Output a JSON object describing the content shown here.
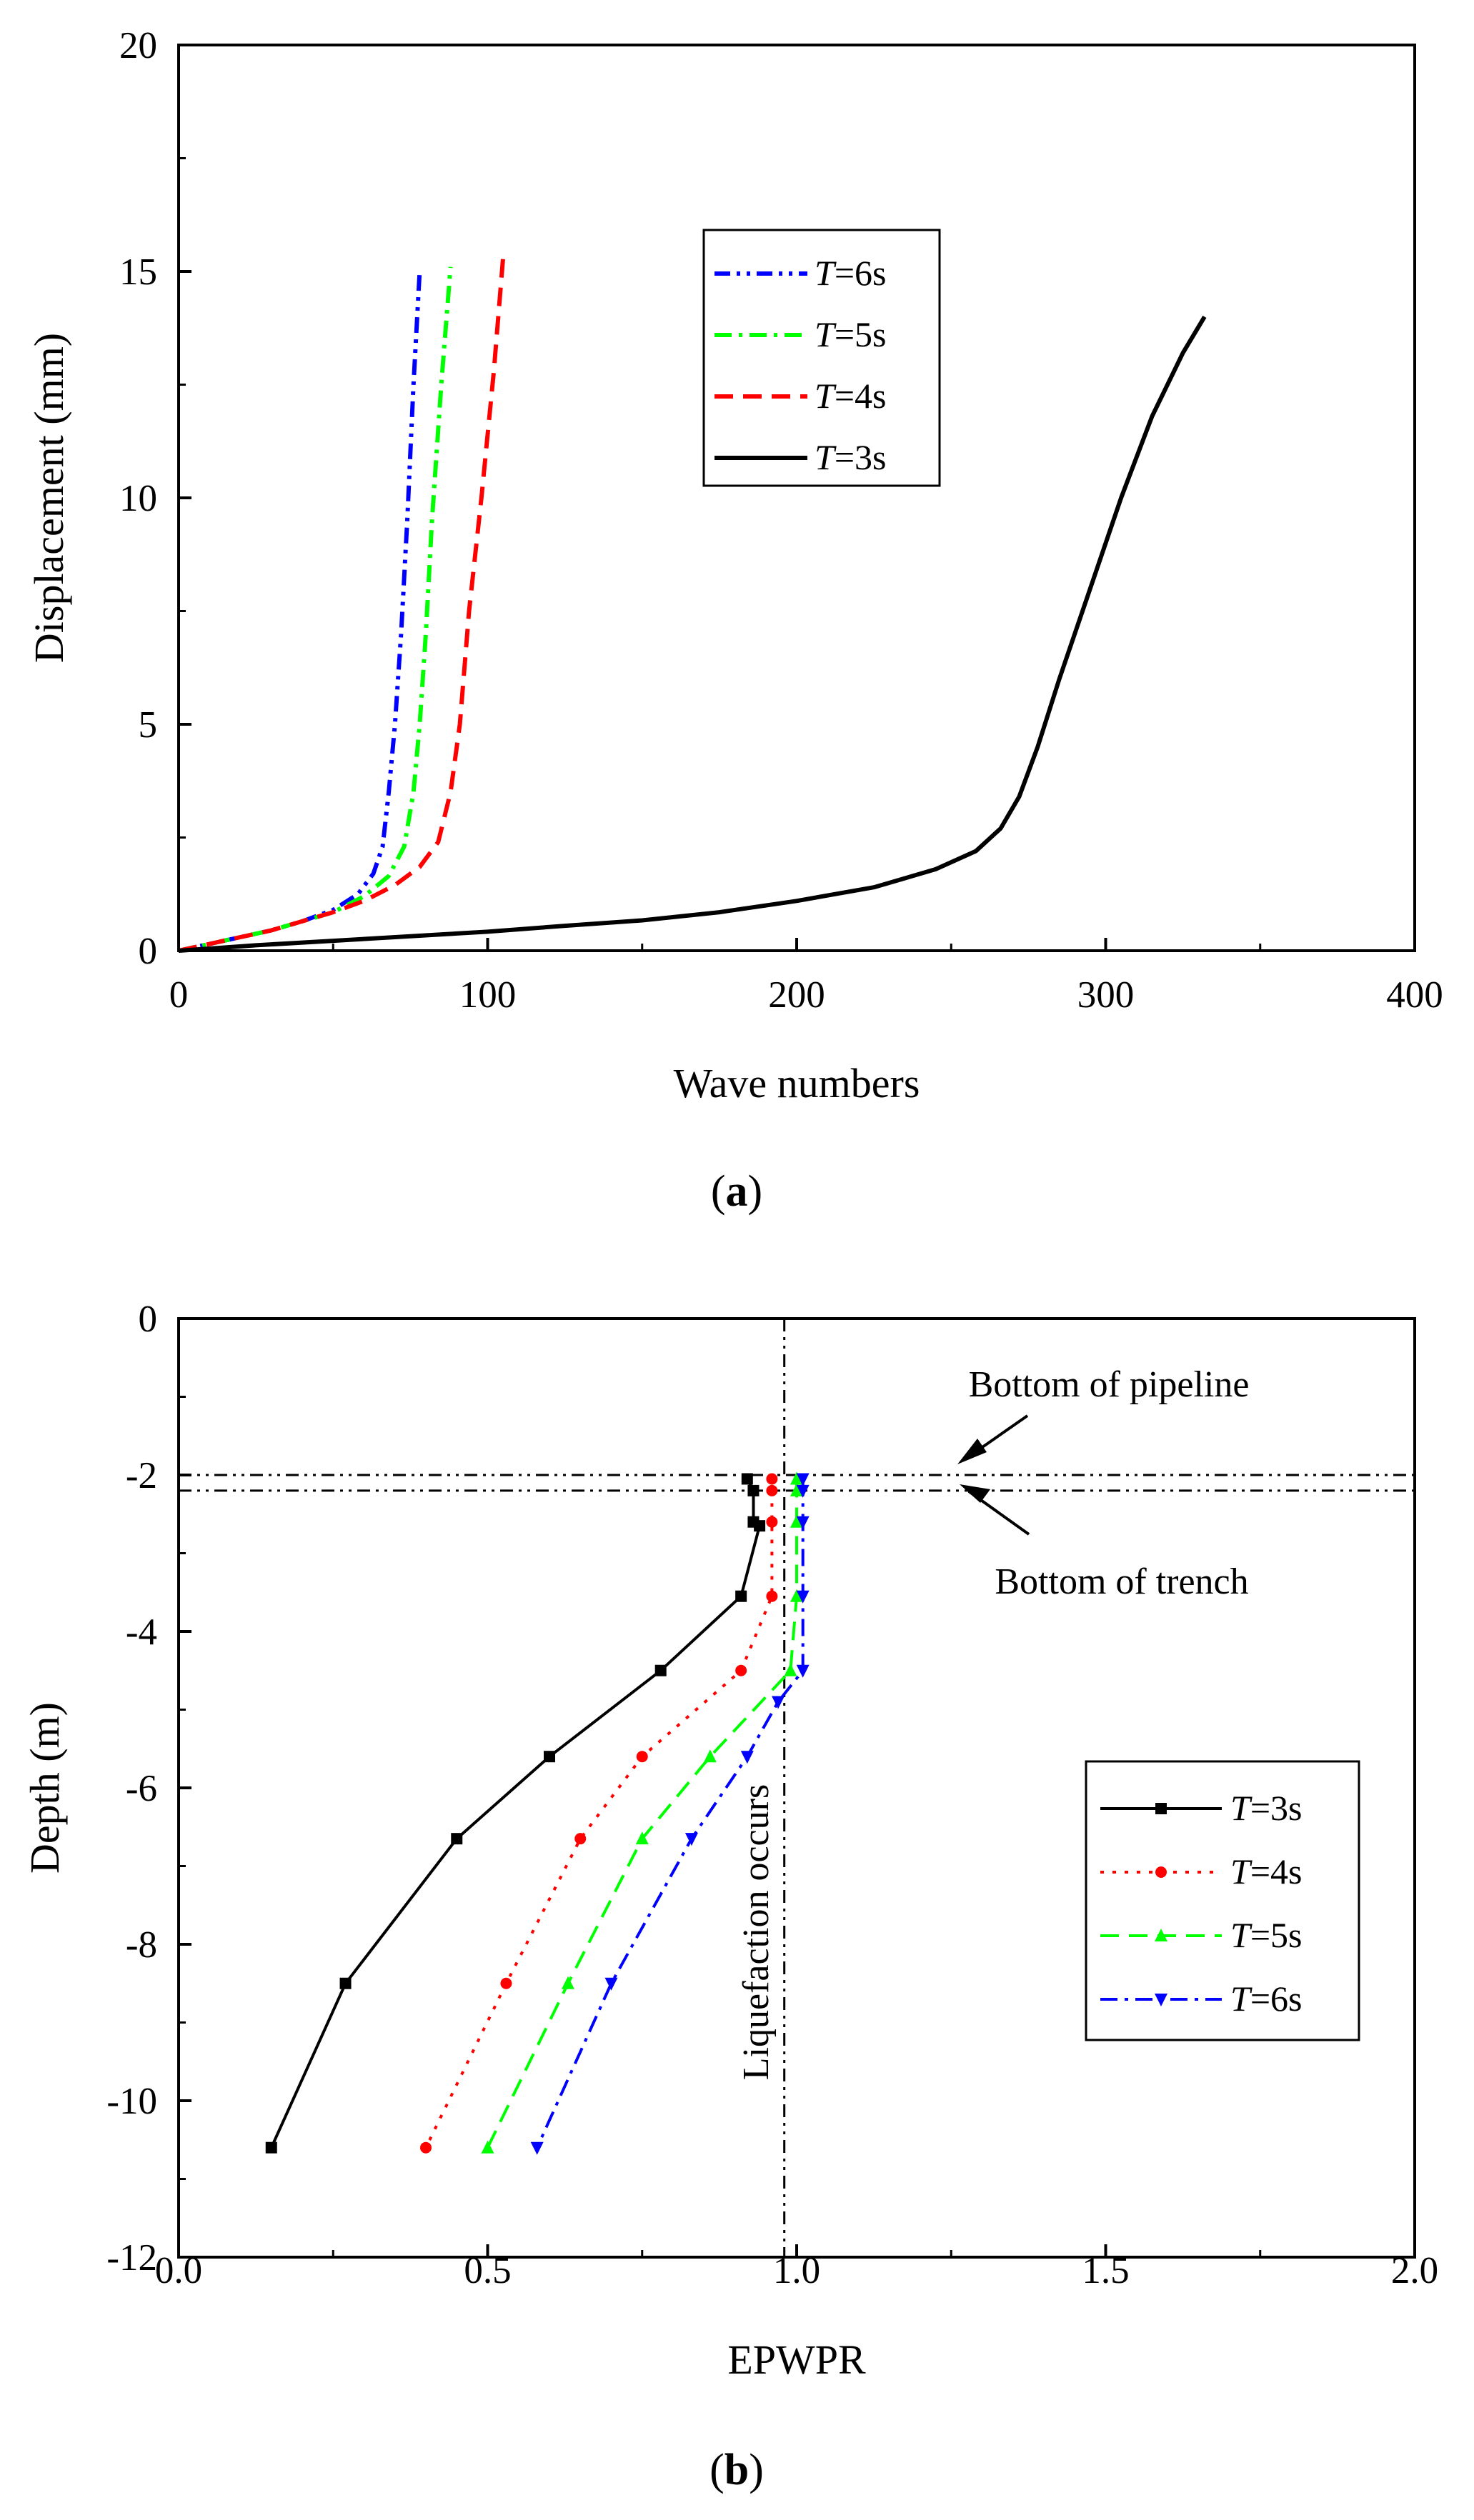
{
  "chart_data": [
    {
      "id": "a",
      "type": "line",
      "caption_letter": "a",
      "xlabel": "Wave numbers",
      "ylabel": "Displacement (mm)",
      "xlim": [
        0,
        400
      ],
      "ylim": [
        0,
        20
      ],
      "xticks": [
        0,
        100,
        200,
        300,
        400
      ],
      "yticks": [
        0,
        5,
        10,
        15,
        20
      ],
      "grid": false,
      "legend_position": "center-top",
      "series": [
        {
          "name": "T=6s",
          "name_italic": "T",
          "name_rest": "=6s",
          "color": "#0000ff",
          "dash": "dashdotdot",
          "points": [
            [
              0,
              0
            ],
            [
              10,
              0.15
            ],
            [
              20,
              0.3
            ],
            [
              30,
              0.45
            ],
            [
              40,
              0.65
            ],
            [
              50,
              0.9
            ],
            [
              58,
              1.25
            ],
            [
              63,
              1.7
            ],
            [
              66,
              2.3
            ],
            [
              68,
              3.5
            ],
            [
              70,
              5
            ],
            [
              72,
              7
            ],
            [
              74,
              9.5
            ],
            [
              76,
              12.5
            ],
            [
              78,
              15
            ]
          ]
        },
        {
          "name": "T=5s",
          "name_italic": "T",
          "name_rest": "=5s",
          "color": "#00ff00",
          "dash": "dashdot",
          "points": [
            [
              0,
              0
            ],
            [
              10,
              0.15
            ],
            [
              20,
              0.3
            ],
            [
              30,
              0.45
            ],
            [
              40,
              0.65
            ],
            [
              50,
              0.85
            ],
            [
              60,
              1.2
            ],
            [
              68,
              1.65
            ],
            [
              73,
              2.3
            ],
            [
              76,
              3.5
            ],
            [
              78,
              5
            ],
            [
              80,
              7
            ],
            [
              82,
              9.5
            ],
            [
              85,
              12.5
            ],
            [
              88,
              15.1
            ]
          ]
        },
        {
          "name": "T=4s",
          "name_italic": "T",
          "name_rest": "=4s",
          "color": "#ff0000",
          "dash": "dash",
          "points": [
            [
              0,
              0
            ],
            [
              10,
              0.15
            ],
            [
              20,
              0.3
            ],
            [
              30,
              0.45
            ],
            [
              40,
              0.65
            ],
            [
              50,
              0.85
            ],
            [
              60,
              1.1
            ],
            [
              70,
              1.45
            ],
            [
              78,
              1.85
            ],
            [
              84,
              2.4
            ],
            [
              88,
              3.5
            ],
            [
              91,
              5
            ],
            [
              94,
              7.5
            ],
            [
              98,
              10
            ],
            [
              102,
              12.8
            ],
            [
              105,
              15.3
            ]
          ]
        },
        {
          "name": "T=3s",
          "name_italic": "T",
          "name_rest": "=3s",
          "color": "#000000",
          "dash": "solid",
          "points": [
            [
              0,
              0
            ],
            [
              25,
              0.12
            ],
            [
              50,
              0.22
            ],
            [
              75,
              0.32
            ],
            [
              100,
              0.42
            ],
            [
              125,
              0.55
            ],
            [
              150,
              0.67
            ],
            [
              175,
              0.85
            ],
            [
              200,
              1.1
            ],
            [
              225,
              1.4
            ],
            [
              245,
              1.8
            ],
            [
              258,
              2.2
            ],
            [
              266,
              2.7
            ],
            [
              272,
              3.4
            ],
            [
              278,
              4.5
            ],
            [
              285,
              6
            ],
            [
              295,
              8
            ],
            [
              305,
              10
            ],
            [
              315,
              11.8
            ],
            [
              325,
              13.2
            ],
            [
              332,
              14
            ]
          ]
        }
      ]
    },
    {
      "id": "b",
      "type": "line",
      "caption_letter": "b",
      "xlabel": "EPWPR",
      "ylabel": "Depth (m)",
      "xlim": [
        0.0,
        2.0
      ],
      "ylim": [
        -12,
        0
      ],
      "xticks": [
        "0.0",
        "0.5",
        "1.0",
        "1.5",
        "2.0"
      ],
      "yticks": [
        0,
        -2,
        -4,
        -6,
        -8,
        -10,
        -12
      ],
      "grid": false,
      "legend_position": "bottom-right",
      "reference_lines": {
        "pipeline_bottom_depth": -2.0,
        "trench_bottom_depth": -2.2,
        "liquefaction_epwpr": 0.98
      },
      "annotations": {
        "pipeline": "Bottom of pipeline",
        "trench": "Bottom of trench",
        "liquefaction": "Liquefaction occurs"
      },
      "series": [
        {
          "name": "T=3s",
          "name_italic": "T",
          "name_rest": "=3s",
          "color": "#000000",
          "dash": "solid",
          "marker": "square",
          "points": [
            [
              0.92,
              -2.05
            ],
            [
              0.93,
              -2.2
            ],
            [
              0.93,
              -2.6
            ],
            [
              0.94,
              -2.65
            ],
            [
              0.91,
              -3.55
            ],
            [
              0.78,
              -4.5
            ],
            [
              0.6,
              -5.6
            ],
            [
              0.45,
              -6.65
            ],
            [
              0.27,
              -8.5
            ],
            [
              0.15,
              -10.6
            ]
          ]
        },
        {
          "name": "T=4s",
          "name_italic": "T",
          "name_rest": "=4s",
          "color": "#ff0000",
          "dash": "dot",
          "marker": "circle",
          "points": [
            [
              0.96,
              -2.05
            ],
            [
              0.96,
              -2.2
            ],
            [
              0.96,
              -2.6
            ],
            [
              0.96,
              -3.55
            ],
            [
              0.91,
              -4.5
            ],
            [
              0.75,
              -5.6
            ],
            [
              0.65,
              -6.65
            ],
            [
              0.53,
              -8.5
            ],
            [
              0.4,
              -10.6
            ]
          ]
        },
        {
          "name": "T=5s",
          "name_italic": "T",
          "name_rest": "=5s",
          "color": "#00ff00",
          "dash": "dash",
          "marker": "triangle-up",
          "points": [
            [
              1.0,
              -2.05
            ],
            [
              1.0,
              -2.2
            ],
            [
              1.0,
              -2.6
            ],
            [
              1.0,
              -3.55
            ],
            [
              0.99,
              -4.5
            ],
            [
              0.86,
              -5.6
            ],
            [
              0.75,
              -6.65
            ],
            [
              0.63,
              -8.5
            ],
            [
              0.5,
              -10.6
            ]
          ]
        },
        {
          "name": "T=6s",
          "name_italic": "T",
          "name_rest": "=6s",
          "color": "#0000ff",
          "dash": "dashdot",
          "marker": "triangle-down",
          "points": [
            [
              1.01,
              -2.05
            ],
            [
              1.01,
              -2.2
            ],
            [
              1.01,
              -2.6
            ],
            [
              1.01,
              -3.55
            ],
            [
              1.01,
              -4.5
            ],
            [
              0.97,
              -4.9
            ],
            [
              0.92,
              -5.6
            ],
            [
              0.83,
              -6.65
            ],
            [
              0.7,
              -8.5
            ],
            [
              0.58,
              -10.6
            ]
          ]
        }
      ]
    }
  ]
}
